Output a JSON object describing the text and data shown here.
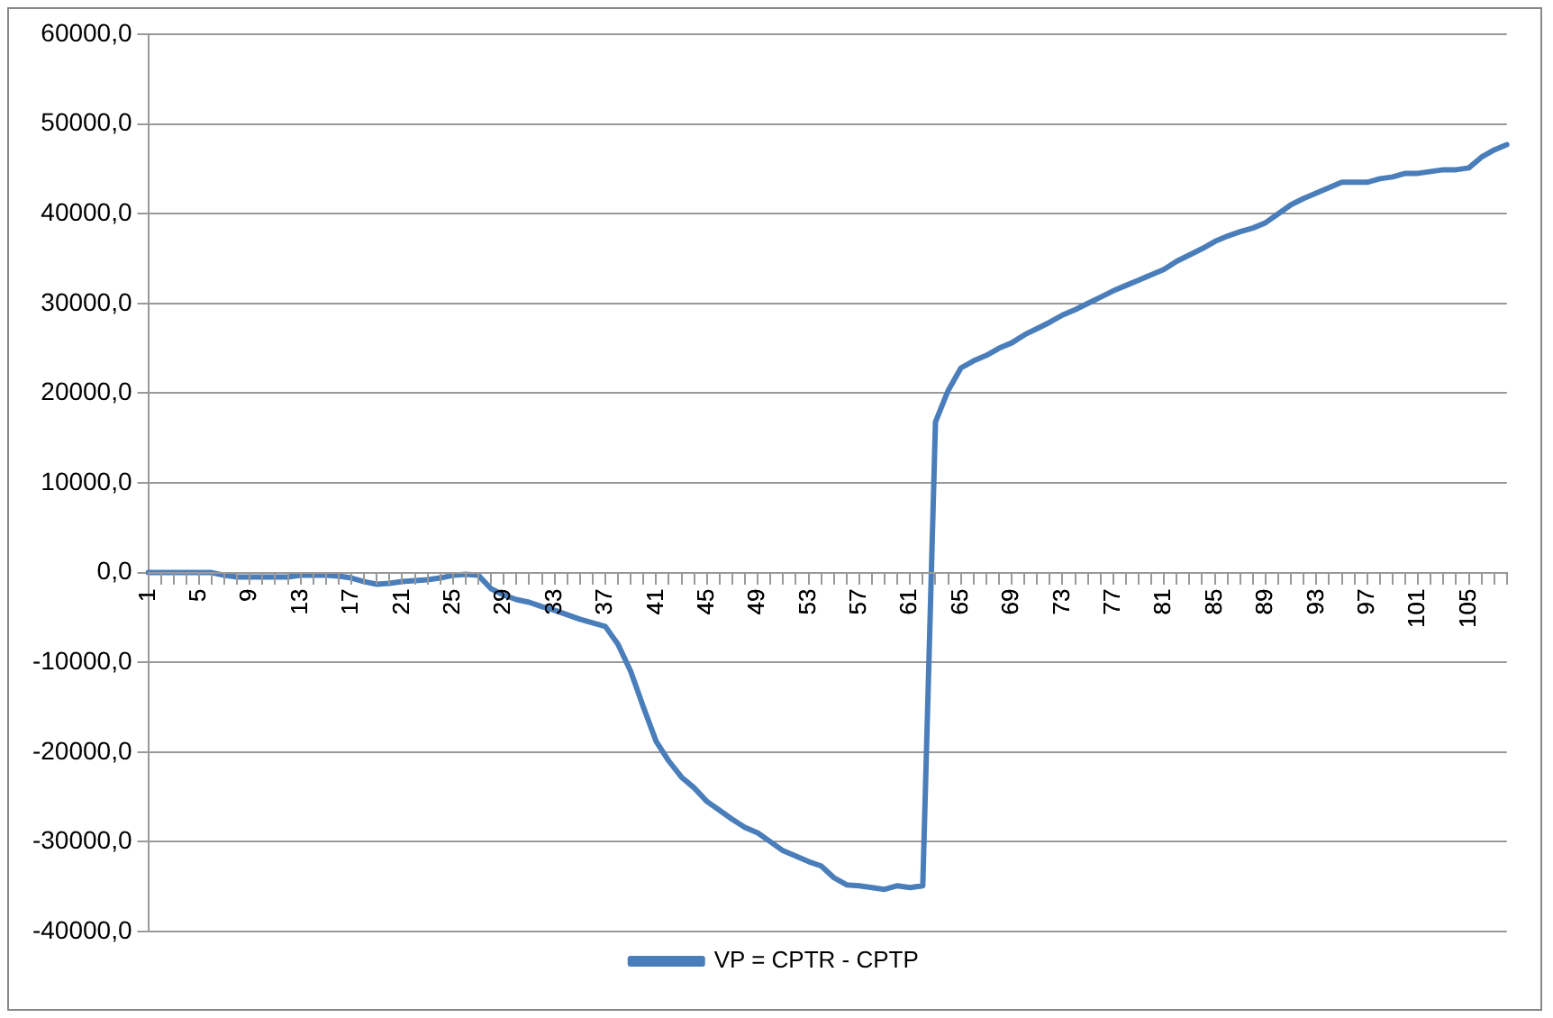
{
  "chart_data": {
    "type": "line",
    "categories": [
      "1",
      null,
      null,
      null,
      "5",
      null,
      null,
      null,
      "9",
      null,
      null,
      null,
      "13",
      null,
      null,
      null,
      "17",
      null,
      null,
      null,
      "21",
      null,
      null,
      null,
      "25",
      null,
      null,
      null,
      "29",
      null,
      null,
      null,
      "33",
      null,
      null,
      null,
      "37",
      null,
      null,
      null,
      "41",
      null,
      null,
      null,
      "45",
      null,
      null,
      null,
      "49",
      null,
      null,
      null,
      "53",
      null,
      null,
      null,
      "57",
      null,
      null,
      null,
      "61",
      null,
      null,
      null,
      "65",
      null,
      null,
      null,
      "69",
      null,
      null,
      null,
      "73",
      null,
      null,
      null,
      "77",
      null,
      null,
      null,
      "81",
      null,
      null,
      null,
      "85",
      null,
      null,
      null,
      "89",
      null,
      null,
      null,
      "93",
      null,
      null,
      null,
      "97",
      null,
      null,
      null,
      "101",
      null,
      null,
      null,
      "105",
      null,
      null,
      null
    ],
    "series": [
      {
        "name": "VP = CPTR - CPTP",
        "color": "#4a7ebb",
        "values": [
          0,
          0,
          0,
          0,
          0,
          0,
          -300,
          -500,
          -500,
          -500,
          -500,
          -500,
          -300,
          -300,
          -300,
          -400,
          -600,
          -1000,
          -1300,
          -1200,
          -1000,
          -900,
          -800,
          -600,
          -300,
          -200,
          -300,
          -1800,
          -2500,
          -3000,
          -3300,
          -3800,
          -4200,
          -4700,
          -5200,
          -5600,
          -6000,
          -8000,
          -11000,
          -15000,
          -18800,
          -21000,
          -22800,
          -24000,
          -25500,
          -26500,
          -27500,
          -28400,
          -29000,
          -30000,
          -31000,
          -31600,
          -32200,
          -32700,
          -34000,
          -34800,
          -34900,
          -35100,
          -35300,
          -34900,
          -35100,
          -34900,
          16800,
          20300,
          22800,
          23600,
          24200,
          25000,
          25600,
          26500,
          27200,
          27900,
          28700,
          29300,
          30000,
          30700,
          31400,
          32000,
          32600,
          33200,
          33800,
          34700,
          35400,
          36100,
          36900,
          37500,
          38000,
          38400,
          39000,
          40000,
          41000,
          41700,
          42300,
          42900,
          43500,
          43500,
          43500,
          43900,
          44100,
          44500,
          44500,
          44700,
          44900,
          44900,
          45100,
          46300,
          47100,
          47700
        ]
      }
    ],
    "ylim": [
      -40000,
      60000
    ],
    "yticks": [
      {
        "value": -40000,
        "label": "-40000,0"
      },
      {
        "value": -30000,
        "label": "-30000,0"
      },
      {
        "value": -20000,
        "label": "-20000,0"
      },
      {
        "value": -10000,
        "label": "-10000,0"
      },
      {
        "value": 0,
        "label": "0,0"
      },
      {
        "value": 10000,
        "label": "10000,0"
      },
      {
        "value": 20000,
        "label": "20000,0"
      },
      {
        "value": 30000,
        "label": "30000,0"
      },
      {
        "value": 40000,
        "label": "40000,0"
      },
      {
        "value": 50000,
        "label": "50000,0"
      },
      {
        "value": 60000,
        "label": "60000,0"
      }
    ],
    "grid": "y",
    "legend": "bottom",
    "marker": "none",
    "line_style": "solid"
  }
}
